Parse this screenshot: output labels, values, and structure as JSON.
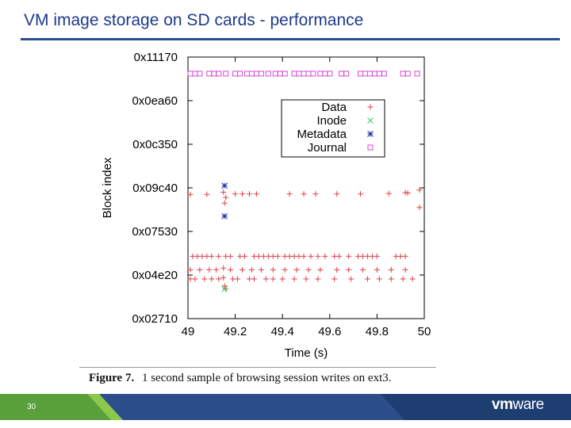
{
  "slide": {
    "title": "VM image storage on SD cards - performance",
    "page_number": "30",
    "logo": {
      "bold": "vm",
      "light": "ware"
    }
  },
  "caption": {
    "label": "Figure 7.",
    "text": "1 second sample of browsing session writes on ext3."
  },
  "colors": {
    "title": "#1f3a8a",
    "Data": "#e0404a",
    "Inode": "#33cc55",
    "Metadata": "#1a2ea0",
    "Journal": "#d44ad4",
    "footer_blue": "#2c4f8c",
    "footer_green": "#5aa03a"
  },
  "chart_data": {
    "type": "scatter",
    "title": "",
    "xlabel": "Time (s)",
    "ylabel": "Block index",
    "xlim": [
      49,
      50
    ],
    "ylim": [
      10000,
      70000
    ],
    "x_ticks": [
      49,
      49.2,
      49.4,
      49.6,
      49.8,
      50
    ],
    "x_tick_labels": [
      "49",
      "49.2",
      "49.4",
      "49.6",
      "49.8",
      "50"
    ],
    "y_ticks": [
      10000,
      20000,
      30000,
      40000,
      50000,
      60000,
      70000
    ],
    "y_tick_labels": [
      "0x02710",
      "0x04e20",
      "0x07530",
      "0x09c40",
      "0x0c350",
      "0x0ea60",
      "0x11170"
    ],
    "legend_position": "top-right",
    "grid": false,
    "series": [
      {
        "name": "Data",
        "marker": "+",
        "points": [
          [
            49.01,
            38500
          ],
          [
            49.08,
            38500
          ],
          [
            49.15,
            39000
          ],
          [
            49.155,
            36500
          ],
          [
            49.16,
            37800
          ],
          [
            49.2,
            38600
          ],
          [
            49.23,
            38600
          ],
          [
            49.26,
            38600
          ],
          [
            49.29,
            38600
          ],
          [
            49.43,
            38600
          ],
          [
            49.49,
            38600
          ],
          [
            49.54,
            38600
          ],
          [
            49.63,
            38600
          ],
          [
            49.73,
            38600
          ],
          [
            49.85,
            38700
          ],
          [
            49.92,
            38900
          ],
          [
            49.93,
            38800
          ],
          [
            49.98,
            39500
          ],
          [
            49.98,
            35500
          ],
          [
            49.02,
            24300
          ],
          [
            49.04,
            24300
          ],
          [
            49.06,
            24300
          ],
          [
            49.08,
            24300
          ],
          [
            49.1,
            24300
          ],
          [
            49.13,
            24300
          ],
          [
            49.16,
            24300
          ],
          [
            49.18,
            24300
          ],
          [
            49.22,
            24300
          ],
          [
            49.24,
            24300
          ],
          [
            49.28,
            24300
          ],
          [
            49.3,
            24300
          ],
          [
            49.32,
            24300
          ],
          [
            49.34,
            24300
          ],
          [
            49.36,
            24300
          ],
          [
            49.38,
            24300
          ],
          [
            49.41,
            24300
          ],
          [
            49.43,
            24300
          ],
          [
            49.45,
            24300
          ],
          [
            49.47,
            24300
          ],
          [
            49.49,
            24300
          ],
          [
            49.52,
            24300
          ],
          [
            49.55,
            24300
          ],
          [
            49.58,
            24300
          ],
          [
            49.62,
            24300
          ],
          [
            49.64,
            24300
          ],
          [
            49.68,
            24300
          ],
          [
            49.72,
            24300
          ],
          [
            49.74,
            24300
          ],
          [
            49.76,
            24300
          ],
          [
            49.78,
            24300
          ],
          [
            49.8,
            24300
          ],
          [
            49.88,
            24300
          ],
          [
            49.9,
            24300
          ],
          [
            49.92,
            24300
          ],
          [
            49.01,
            21200
          ],
          [
            49.05,
            21200
          ],
          [
            49.09,
            21200
          ],
          [
            49.12,
            21200
          ],
          [
            49.15,
            21600
          ],
          [
            49.18,
            21200
          ],
          [
            49.23,
            21200
          ],
          [
            49.27,
            21200
          ],
          [
            49.31,
            21200
          ],
          [
            49.36,
            21200
          ],
          [
            49.41,
            21200
          ],
          [
            49.46,
            21200
          ],
          [
            49.51,
            21200
          ],
          [
            49.56,
            21200
          ],
          [
            49.63,
            21200
          ],
          [
            49.68,
            21200
          ],
          [
            49.74,
            21200
          ],
          [
            49.8,
            21200
          ],
          [
            49.86,
            21200
          ],
          [
            49.92,
            21200
          ],
          [
            49.01,
            19100
          ],
          [
            49.03,
            19100
          ],
          [
            49.07,
            19100
          ],
          [
            49.1,
            19100
          ],
          [
            49.13,
            19100
          ],
          [
            49.15,
            19400
          ],
          [
            49.19,
            19100
          ],
          [
            49.21,
            19100
          ],
          [
            49.26,
            19100
          ],
          [
            49.28,
            19100
          ],
          [
            49.33,
            19100
          ],
          [
            49.36,
            19100
          ],
          [
            49.4,
            19100
          ],
          [
            49.45,
            19100
          ],
          [
            49.5,
            19100
          ],
          [
            49.55,
            19100
          ],
          [
            49.62,
            19100
          ],
          [
            49.69,
            19100
          ],
          [
            49.76,
            19100
          ],
          [
            49.81,
            19100
          ],
          [
            49.86,
            19100
          ],
          [
            49.91,
            19100
          ],
          [
            49.95,
            19100
          ],
          [
            49.155,
            17500
          ],
          [
            49.16,
            16800
          ]
        ]
      },
      {
        "name": "Inode",
        "marker": "x",
        "points": [
          [
            49.155,
            16800
          ]
        ]
      },
      {
        "name": "Metadata",
        "marker": "*",
        "points": [
          [
            49.155,
            40500
          ],
          [
            49.155,
            33500
          ]
        ]
      },
      {
        "name": "Journal",
        "marker": "square",
        "points": [
          [
            49.01,
            66200
          ],
          [
            49.03,
            66200
          ],
          [
            49.05,
            66200
          ],
          [
            49.09,
            66200
          ],
          [
            49.11,
            66200
          ],
          [
            49.13,
            66200
          ],
          [
            49.16,
            66200
          ],
          [
            49.2,
            66200
          ],
          [
            49.22,
            66200
          ],
          [
            49.25,
            66200
          ],
          [
            49.27,
            66200
          ],
          [
            49.29,
            66200
          ],
          [
            49.31,
            66200
          ],
          [
            49.34,
            66200
          ],
          [
            49.37,
            66200
          ],
          [
            49.39,
            66200
          ],
          [
            49.41,
            66200
          ],
          [
            49.45,
            66200
          ],
          [
            49.47,
            66200
          ],
          [
            49.49,
            66200
          ],
          [
            49.51,
            66200
          ],
          [
            49.53,
            66200
          ],
          [
            49.56,
            66200
          ],
          [
            49.58,
            66200
          ],
          [
            49.6,
            66200
          ],
          [
            49.65,
            66200
          ],
          [
            49.67,
            66200
          ],
          [
            49.73,
            66200
          ],
          [
            49.75,
            66200
          ],
          [
            49.77,
            66200
          ],
          [
            49.79,
            66200
          ],
          [
            49.81,
            66200
          ],
          [
            49.83,
            66200
          ],
          [
            49.91,
            66200
          ],
          [
            49.93,
            66200
          ],
          [
            49.97,
            66200
          ]
        ]
      }
    ]
  }
}
